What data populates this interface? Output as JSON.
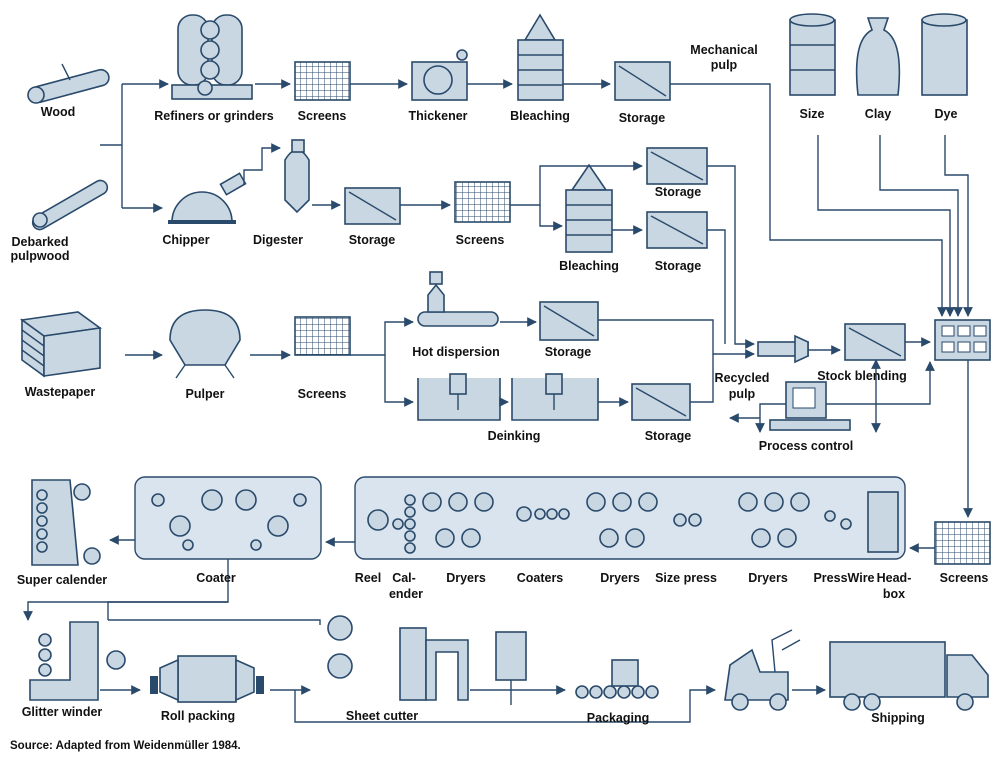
{
  "title_nodes": [
    {
      "label": "Wood"
    },
    {
      "label": "Refiners or grinders"
    },
    {
      "label": "Screens"
    },
    {
      "label": "Thickener"
    },
    {
      "label": "Bleaching"
    },
    {
      "label": "Storage"
    },
    {
      "lines": [
        "Mechanical",
        "pulp"
      ]
    },
    {
      "label": "Size"
    },
    {
      "label": "Clay"
    },
    {
      "label": "Dye"
    },
    {
      "lines": [
        "Debarked",
        "pulpwood"
      ]
    },
    {
      "label": "Chipper"
    },
    {
      "label": "Digester"
    },
    {
      "label": "Storage"
    },
    {
      "label": "Screens"
    },
    {
      "label": "Storage"
    },
    {
      "label": "Bleaching"
    },
    {
      "label": "Storage"
    },
    {
      "label": "Hot dispersion"
    },
    {
      "label": "Storage"
    },
    {
      "label": "Wastepaper"
    },
    {
      "label": "Pulper"
    },
    {
      "label": "Screens"
    },
    {
      "lines": [
        "Recycled",
        "pulp"
      ]
    },
    {
      "label": "Stock blending"
    },
    {
      "label": "Deinking"
    },
    {
      "label": "Storage"
    },
    {
      "label": "Process control"
    },
    {
      "label": "Super calender"
    },
    {
      "label": "Coater"
    },
    {
      "label": "Reel"
    },
    {
      "lines": [
        "Cal-",
        "ender"
      ]
    },
    {
      "label": "Dryers"
    },
    {
      "label": "Coaters"
    },
    {
      "label": "Dryers"
    },
    {
      "label": "Size press"
    },
    {
      "label": "Dryers"
    },
    {
      "label": "PressWire"
    },
    {
      "lines": [
        "Head-",
        "box"
      ]
    },
    {
      "label": "Screens"
    },
    {
      "label": "Glitter winder"
    },
    {
      "label": "Roll packing"
    },
    {
      "label": "Sheet cutter"
    },
    {
      "label": "Packaging"
    },
    {
      "label": "Shipping"
    }
  ],
  "source": "Source: Adapted from Weidenmüller 1984."
}
